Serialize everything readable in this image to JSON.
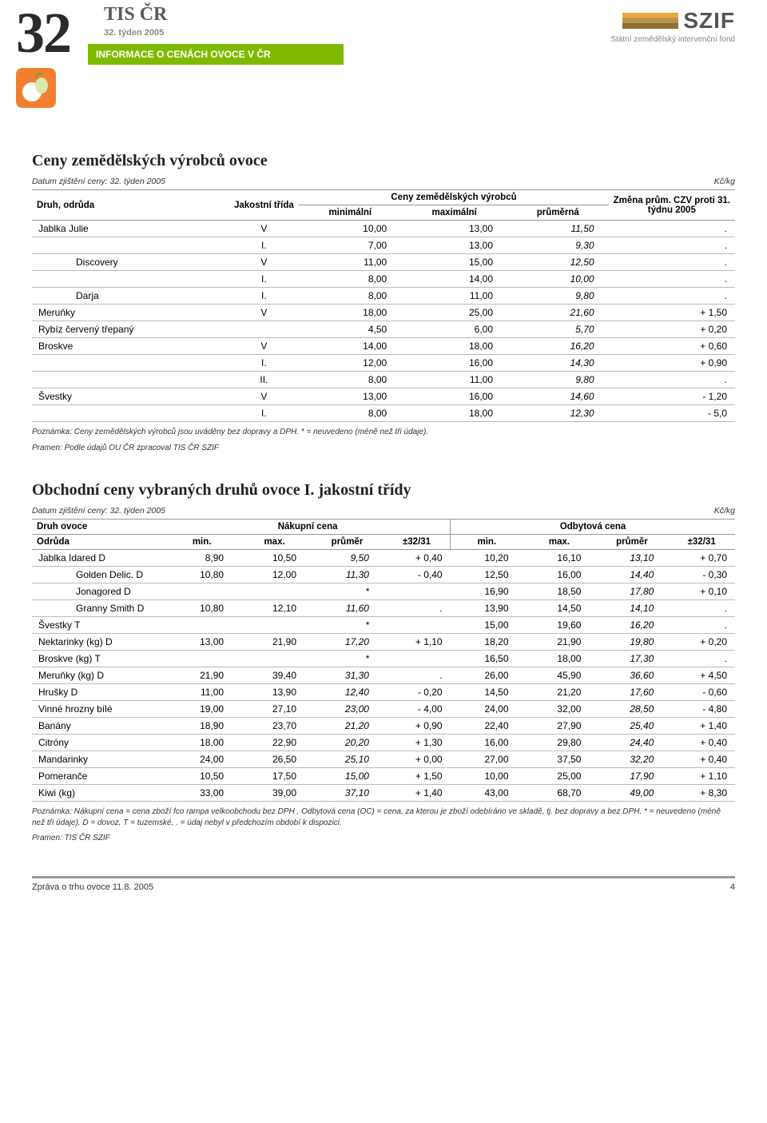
{
  "header": {
    "big_number": "32",
    "tis": "TIS ČR",
    "week": "32. týden 2005",
    "banner": "INFORMACE O CENÁCH OVOCE V ČR",
    "szif": "SZIF",
    "szif_sub": "Státní zemědělský intervenční fond"
  },
  "table1": {
    "title": "Ceny zemědělských výrobců ovoce",
    "date_label": "Datum zjištění ceny: 32. týden 2005",
    "unit": "Kč/kg",
    "columns": {
      "c1": "Druh, odrůda",
      "c2": "Jakostní třída",
      "c3_group": "Ceny zemědělských výrobců",
      "c3a": "minimální",
      "c3b": "maximální",
      "c3c": "průměrná",
      "c4": "Změna prům. CZV proti 31. týdnu 2005"
    },
    "rows": [
      {
        "name": "Jablka Julie",
        "cls": "V",
        "min": "10,00",
        "max": "13,00",
        "avg": "11,50",
        "chg": ".",
        "indent": 0
      },
      {
        "name": "",
        "cls": "I.",
        "min": "7,00",
        "max": "13,00",
        "avg": "9,30",
        "chg": ".",
        "indent": 0
      },
      {
        "name": "Discovery",
        "cls": "V",
        "min": "11,00",
        "max": "15,00",
        "avg": "12,50",
        "chg": ".",
        "indent": 1
      },
      {
        "name": "",
        "cls": "I.",
        "min": "8,00",
        "max": "14,00",
        "avg": "10,00",
        "chg": ".",
        "indent": 0
      },
      {
        "name": "Darja",
        "cls": "I.",
        "min": "8,00",
        "max": "11,00",
        "avg": "9,80",
        "chg": ".",
        "indent": 1
      },
      {
        "name": "Meruňky",
        "cls": "V",
        "min": "18,00",
        "max": "25,00",
        "avg": "21,60",
        "chg": "+ 1,50",
        "indent": 0
      },
      {
        "name": "Rybíz červený třepaný",
        "cls": "",
        "min": "4,50",
        "max": "6,00",
        "avg": "5,70",
        "chg": "+ 0,20",
        "indent": 0
      },
      {
        "name": "Broskve",
        "cls": "V",
        "min": "14,00",
        "max": "18,00",
        "avg": "16,20",
        "chg": "+ 0,60",
        "indent": 0
      },
      {
        "name": "",
        "cls": "I.",
        "min": "12,00",
        "max": "16,00",
        "avg": "14,30",
        "chg": "+ 0,90",
        "indent": 0
      },
      {
        "name": "",
        "cls": "II.",
        "min": "8,00",
        "max": "11,00",
        "avg": "9,80",
        "chg": ".",
        "indent": 0
      },
      {
        "name": "Švestky",
        "cls": "V",
        "min": "13,00",
        "max": "16,00",
        "avg": "14,60",
        "chg": "- 1,20",
        "indent": 0
      },
      {
        "name": "",
        "cls": "I.",
        "min": "8,00",
        "max": "18,00",
        "avg": "12,30",
        "chg": "- 5,0",
        "indent": 0
      }
    ],
    "footnote1": "Poznámka: Ceny zemědělských výrobců jsou uváděny bez dopravy a DPH. * = neuvedeno (méně než tři údaje).",
    "footnote2": "Pramen: Podle údajů OU ČR zpracoval TIS ČR SZIF"
  },
  "table2": {
    "title": "Obchodní ceny vybraných druhů ovoce I. jakostní třídy",
    "date_label": "Datum zjištění ceny: 32. týden 2005",
    "unit": "Kč/kg",
    "columns": {
      "c1a": "Druh ovoce",
      "c1b": "Odrůda",
      "g1": "Nákupní cena",
      "g2": "Odbytová cena",
      "min": "min.",
      "max": "max.",
      "avg": "průměr",
      "diff": "±32/31"
    },
    "rows": [
      {
        "name": "Jablka Idared D",
        "indent": 0,
        "n_min": "8,90",
        "n_max": "10,50",
        "n_avg": "9,50",
        "n_d": "+ 0,40",
        "o_min": "10,20",
        "o_max": "16,10",
        "o_avg": "13,10",
        "o_d": "+ 0,70"
      },
      {
        "name": "Golden Delic.  D",
        "indent": 1,
        "n_min": "10,80",
        "n_max": "12,00",
        "n_avg": "11,30",
        "n_d": "- 0,40",
        "o_min": "12,50",
        "o_max": "16,00",
        "o_avg": "14,40",
        "o_d": "- 0,30"
      },
      {
        "name": "Jonagored D",
        "indent": 1,
        "n_min": "",
        "n_max": "",
        "n_avg": "*",
        "n_d": "",
        "o_min": "16,90",
        "o_max": "18,50",
        "o_avg": "17,80",
        "o_d": "+ 0,10"
      },
      {
        "name": "Granny Smith D",
        "indent": 1,
        "n_min": "10,80",
        "n_max": "12,10",
        "n_avg": "11,60",
        "n_d": ".",
        "o_min": "13,90",
        "o_max": "14,50",
        "o_avg": "14,10",
        "o_d": "."
      },
      {
        "name": "Švestky T",
        "indent": 0,
        "n_min": "",
        "n_max": "",
        "n_avg": "*",
        "n_d": "",
        "o_min": "15,00",
        "o_max": "19,60",
        "o_avg": "16,20",
        "o_d": "."
      },
      {
        "name": "Nektarinky (kg) D",
        "indent": 0,
        "n_min": "13,00",
        "n_max": "21,90",
        "n_avg": "17,20",
        "n_d": "+ 1,10",
        "o_min": "18,20",
        "o_max": "21,90",
        "o_avg": "19,80",
        "o_d": "+ 0,20"
      },
      {
        "name": "Broskve (kg) T",
        "indent": 0,
        "n_min": "",
        "n_max": "",
        "n_avg": "*",
        "n_d": "",
        "o_min": "16,50",
        "o_max": "18,00",
        "o_avg": "17,30",
        "o_d": "."
      },
      {
        "name": "Meruňky (kg) D",
        "indent": 0,
        "n_min": "21,90",
        "n_max": "39,40",
        "n_avg": "31,30",
        "n_d": ".",
        "o_min": "26,00",
        "o_max": "45,90",
        "o_avg": "36,60",
        "o_d": "+ 4,50"
      },
      {
        "name": "Hrušky D",
        "indent": 0,
        "n_min": "11,00",
        "n_max": "13,90",
        "n_avg": "12,40",
        "n_d": "- 0,20",
        "o_min": "14,50",
        "o_max": "21,20",
        "o_avg": "17,60",
        "o_d": "- 0,60"
      },
      {
        "name": "Vinné hrozny bílé",
        "indent": 0,
        "n_min": "19,00",
        "n_max": "27,10",
        "n_avg": "23,00",
        "n_d": "- 4,00",
        "o_min": "24,00",
        "o_max": "32,00",
        "o_avg": "28,50",
        "o_d": "- 4,80"
      },
      {
        "name": "Banány",
        "indent": 0,
        "n_min": "18,90",
        "n_max": "23,70",
        "n_avg": "21,20",
        "n_d": "+ 0,90",
        "o_min": "22,40",
        "o_max": "27,90",
        "o_avg": "25,40",
        "o_d": "+ 1,40"
      },
      {
        "name": "Citróny",
        "indent": 0,
        "n_min": "18,00",
        "n_max": "22,90",
        "n_avg": "20,20",
        "n_d": "+ 1,30",
        "o_min": "16,00",
        "o_max": "29,80",
        "o_avg": "24,40",
        "o_d": "+ 0,40"
      },
      {
        "name": "Mandarinky",
        "indent": 0,
        "n_min": "24,00",
        "n_max": "26,50",
        "n_avg": "25,10",
        "n_d": "+ 0,00",
        "o_min": "27,00",
        "o_max": "37,50",
        "o_avg": "32,20",
        "o_d": "+ 0,40"
      },
      {
        "name": "Pomeranče",
        "indent": 0,
        "n_min": "10,50",
        "n_max": "17,50",
        "n_avg": "15,00",
        "n_d": "+ 1,50",
        "o_min": "10,00",
        "o_max": "25,00",
        "o_avg": "17,90",
        "o_d": "+ 1,10"
      },
      {
        "name": "Kiwi (kg)",
        "indent": 0,
        "n_min": "33,00",
        "n_max": "39,00",
        "n_avg": "37,10",
        "n_d": "+ 1,40",
        "o_min": "43,00",
        "o_max": "68,70",
        "o_avg": "49,00",
        "o_d": "+ 8,30"
      }
    ],
    "footnote1": "Poznámka: Nákupní cena = cena zboží fco rampa velkoobchodu bez DPH , Odbytová cena (OC)  = cena, za kterou je zboží odebíráno ve skladě, tj. bez dopravy a bez DPH.  * = neuvedeno (méně než tři údaje), D = dovoz, T = tuzemské, . = údaj nebyl v předchozím období k dispozici.",
    "footnote2": "Pramen: TIS ČR SZIF"
  },
  "footer": {
    "left": "Zpráva o trhu ovoce 11.8. 2005",
    "page": "4"
  }
}
